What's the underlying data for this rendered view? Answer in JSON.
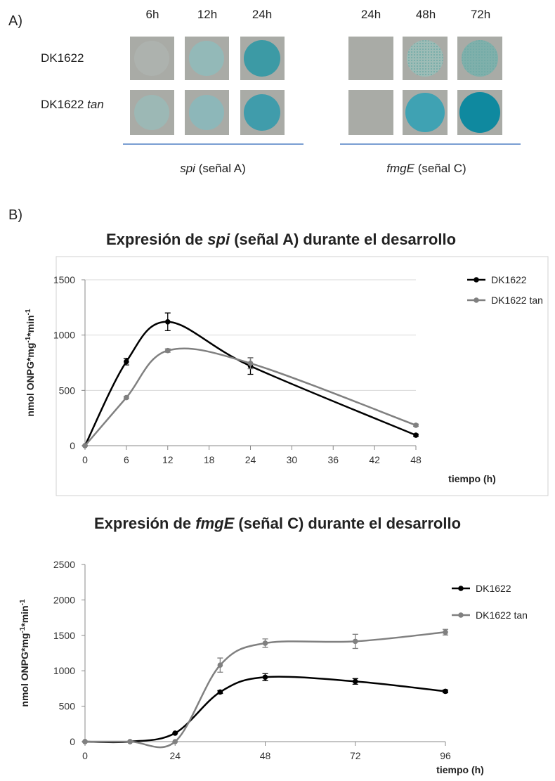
{
  "panel_a": {
    "label": "A)",
    "groups": [
      {
        "times": [
          "6h",
          "12h",
          "24h"
        ],
        "gene": "spi",
        "signal": "(señal A)"
      },
      {
        "times": [
          "24h",
          "48h",
          "72h"
        ],
        "gene": "fmgE",
        "signal": "(señal C)"
      }
    ],
    "rows": [
      {
        "strain": "DK1622"
      },
      {
        "strain": "DK1622",
        "mutation": "tan"
      }
    ]
  },
  "panel_b": {
    "label": "B)"
  },
  "chart_data": [
    {
      "type": "line",
      "title": [
        "Expresión de",
        "spi",
        "(señal A) durante el desarrollo"
      ],
      "y_label": [
        "nmol ONPG*mg",
        "-1",
        "*min",
        "-1"
      ],
      "x_label": "tiempo (h)",
      "x": [
        0,
        6,
        12,
        24,
        48
      ],
      "xlim": [
        0,
        48
      ],
      "xticks": [
        0,
        6,
        12,
        18,
        24,
        30,
        36,
        42,
        48
      ],
      "ylim": [
        0,
        1500
      ],
      "yticks": [
        0,
        500,
        1000,
        1500
      ],
      "grid": true,
      "legend": "right",
      "series": [
        {
          "name": "DK1622",
          "color": "#000000",
          "values": [
            0,
            760,
            1120,
            720,
            95
          ],
          "errors": [
            0,
            30,
            80,
            75,
            10
          ]
        },
        {
          "name": "DK1622 tan",
          "color": "#808080",
          "values": [
            0,
            435,
            860,
            745,
            185
          ],
          "errors": [
            0,
            10,
            15,
            50,
            10
          ]
        }
      ]
    },
    {
      "type": "line",
      "title": [
        "Expresión de",
        "fmgE",
        "(señal C) durante el desarrollo"
      ],
      "y_label": [
        "nmol ONPG*mg",
        "-1",
        "*min",
        "-1"
      ],
      "x_label": "tiempo (h)",
      "x": [
        0,
        12,
        24,
        36,
        48,
        72,
        96
      ],
      "xlim": [
        0,
        96
      ],
      "xticks": [
        0,
        24,
        48,
        72,
        96
      ],
      "ylim": [
        0,
        2500
      ],
      "yticks": [
        0,
        500,
        1000,
        1500,
        2000,
        2500
      ],
      "grid": false,
      "legend": "right",
      "series": [
        {
          "name": "DK1622",
          "color": "#000000",
          "values": [
            0,
            0,
            120,
            700,
            910,
            850,
            710
          ],
          "errors": [
            0,
            0,
            0,
            20,
            50,
            40,
            20
          ]
        },
        {
          "name": "DK1622 tan",
          "color": "#808080",
          "values": [
            0,
            0,
            0,
            1080,
            1390,
            1415,
            1545
          ],
          "errors": [
            0,
            0,
            0,
            100,
            60,
            100,
            40
          ]
        }
      ]
    }
  ]
}
